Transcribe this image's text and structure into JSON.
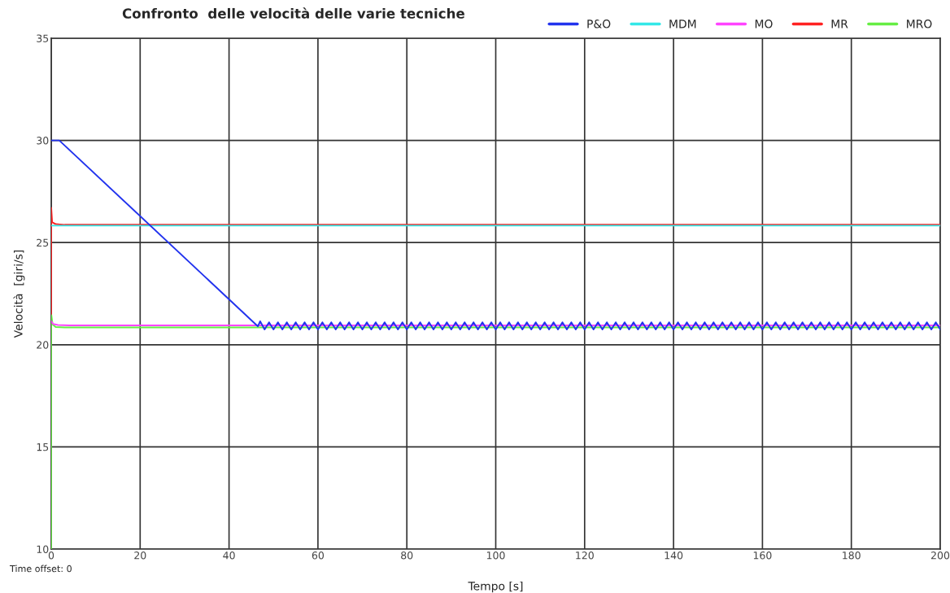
{
  "chart_data": {
    "type": "line",
    "title": "Confronto  delle velocità delle varie tecniche",
    "xlabel": "Tempo [s]",
    "ylabel": "Velocità  [giri/s]",
    "annotations": [
      "Time offset: 0"
    ],
    "xlim": [
      0,
      200
    ],
    "ylim": [
      10,
      35
    ],
    "xticks": [
      0,
      20,
      40,
      60,
      80,
      100,
      120,
      140,
      160,
      180,
      200
    ],
    "yticks": [
      10,
      15,
      20,
      25,
      30,
      35
    ],
    "grid": true,
    "legend": "top right",
    "series": [
      {
        "name": "P&O",
        "color": "#2233ee",
        "x": [
          0,
          1.8,
          46.5,
          47,
          48,
          49,
          50,
          51,
          52,
          53,
          54,
          55,
          56,
          57,
          58,
          59,
          60,
          61,
          62,
          63,
          64,
          65,
          66,
          67,
          68,
          69,
          70,
          71,
          72,
          73,
          74,
          75,
          76,
          77,
          78,
          79,
          80,
          81,
          82,
          83,
          84,
          85,
          86,
          87,
          88,
          89,
          90,
          91,
          92,
          93,
          94,
          95,
          96,
          97,
          98,
          99,
          100,
          101,
          102,
          103,
          104,
          105,
          106,
          107,
          108,
          109,
          110,
          111,
          112,
          113,
          114,
          115,
          116,
          117,
          118,
          119,
          120,
          121,
          122,
          123,
          124,
          125,
          126,
          127,
          128,
          129,
          130,
          131,
          132,
          133,
          134,
          135,
          136,
          137,
          138,
          139,
          140,
          141,
          142,
          143,
          144,
          145,
          146,
          147,
          148,
          149,
          150,
          151,
          152,
          153,
          154,
          155,
          156,
          157,
          158,
          159,
          160,
          161,
          162,
          163,
          164,
          165,
          166,
          167,
          168,
          169,
          170,
          171,
          172,
          173,
          174,
          175,
          176,
          177,
          178,
          179,
          180,
          181,
          182,
          183,
          184,
          185,
          186,
          187,
          188,
          189,
          190,
          191,
          192,
          193,
          194,
          195,
          196,
          197,
          198,
          199,
          200
        ],
        "values": [
          30,
          30,
          20.9,
          21.15,
          20.75,
          21.1,
          20.75,
          21.1,
          20.75,
          21.1,
          20.75,
          21.1,
          20.75,
          21.1,
          20.75,
          21.1,
          20.75,
          21.1,
          20.75,
          21.1,
          20.75,
          21.1,
          20.75,
          21.1,
          20.75,
          21.1,
          20.75,
          21.1,
          20.75,
          21.1,
          20.75,
          21.1,
          20.75,
          21.1,
          20.75,
          21.1,
          20.75,
          21.1,
          20.75,
          21.1,
          20.75,
          21.1,
          20.75,
          21.1,
          20.75,
          21.1,
          20.75,
          21.1,
          20.75,
          21.1,
          20.75,
          21.1,
          20.75,
          21.1,
          20.75,
          21.1,
          20.75,
          21.1,
          20.75,
          21.1,
          20.75,
          21.1,
          20.75,
          21.1,
          20.75,
          21.1,
          20.75,
          21.1,
          20.75,
          21.1,
          20.75,
          21.1,
          20.75,
          21.1,
          20.75,
          21.1,
          20.75,
          21.1,
          20.75,
          21.1,
          20.75,
          21.1,
          20.75,
          21.1,
          20.75,
          21.1,
          20.75,
          21.1,
          20.75,
          21.1,
          20.75,
          21.1,
          20.75,
          21.1,
          20.75,
          21.1,
          20.75,
          21.1,
          20.75,
          21.1,
          20.75,
          21.1,
          20.75,
          21.1,
          20.75,
          21.1,
          20.75,
          21.1,
          20.75,
          21.1,
          20.75,
          21.1,
          20.75,
          21.1,
          20.75,
          21.1,
          20.75,
          21.1,
          20.75,
          21.1,
          20.75,
          21.1,
          20.75,
          21.1,
          20.75,
          21.1,
          20.75,
          21.1,
          20.75,
          21.1,
          20.75,
          21.1,
          20.75,
          21.1,
          20.75,
          21.1,
          20.75,
          21.1,
          20.75,
          21.1,
          20.75,
          21.1,
          20.75,
          21.1,
          20.75,
          21.1,
          20.75,
          21.1,
          20.75,
          21.1,
          20.75,
          21.1,
          20.75,
          21.1,
          20.75,
          21.1,
          20.75
        ]
      },
      {
        "name": "MDM",
        "color": "#33e8e8",
        "x": [
          0,
          200
        ],
        "values": [
          25.83,
          25.83
        ]
      },
      {
        "name": "MO",
        "color": "#ff44ff",
        "x": [
          0,
          0.4,
          1.5,
          4,
          200
        ],
        "values": [
          21.15,
          21.02,
          20.97,
          20.95,
          20.95
        ]
      },
      {
        "name": "MR",
        "color": "#ff2222",
        "x": [
          0,
          0,
          0.2,
          1,
          3,
          200
        ],
        "values": [
          21.5,
          26.7,
          26.0,
          25.9,
          25.87,
          25.87
        ]
      },
      {
        "name": "MRO",
        "color": "#66ee44",
        "x": [
          0,
          0,
          0.3,
          1,
          3,
          200
        ],
        "values": [
          10,
          21.5,
          21.0,
          20.87,
          20.85,
          20.85
        ]
      }
    ]
  }
}
